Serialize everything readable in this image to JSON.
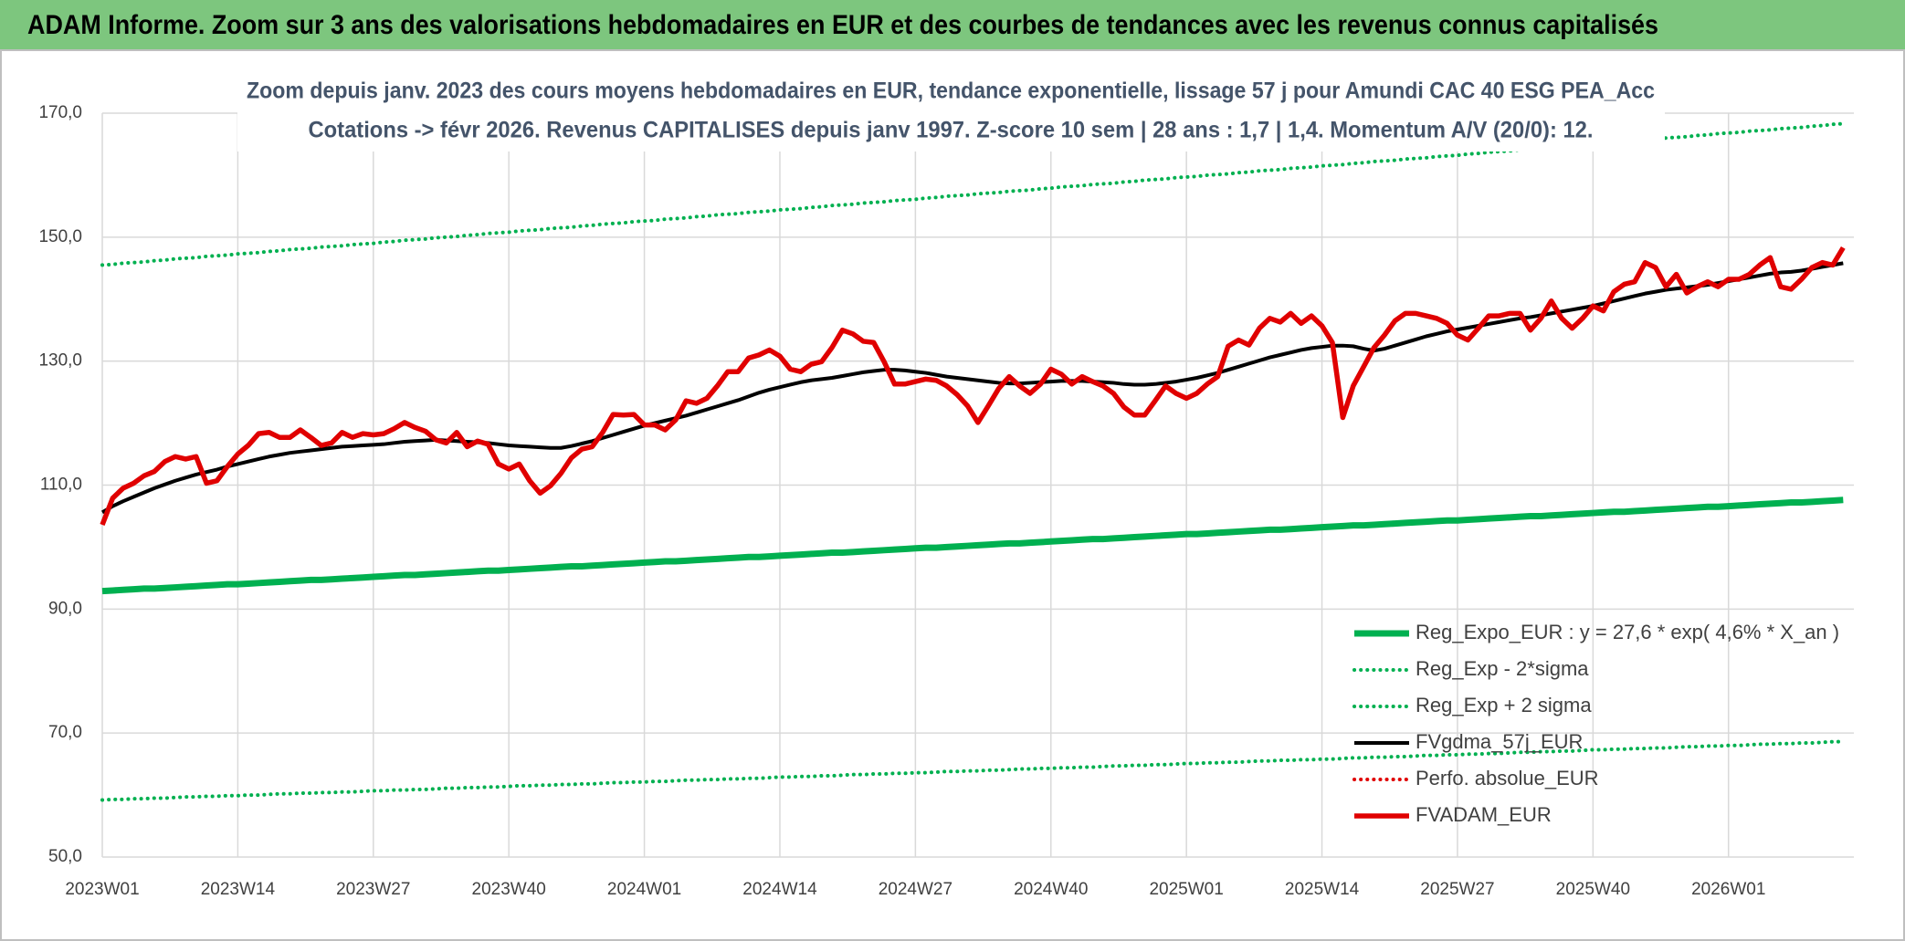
{
  "chart_data": {
    "type": "line",
    "title": "ADAM Informe. Zoom sur 3 ans des valorisations hebdomadaires en EUR et des courbes de tendances avec les revenus connus capitalisés",
    "subtitle": [
      "Zoom depuis janv. 2023 des cours moyens hebdomadaires en EUR, tendance exponentielle, lissage 57 j pour Amundi CAC 40 ESG PEA_Acc",
      "Cotations -> févr 2026. Revenus CAPITALISES depuis janv 1997. Z-score 10 sem | 28 ans : 1,7 | 1,4. Momentum A/V (20/0): 12."
    ],
    "categories": [
      "2023W01",
      null,
      null,
      null,
      null,
      null,
      null,
      null,
      null,
      null,
      null,
      null,
      null,
      "2023W14",
      null,
      null,
      null,
      null,
      null,
      null,
      null,
      null,
      null,
      null,
      null,
      null,
      "2023W27",
      null,
      null,
      null,
      null,
      null,
      null,
      null,
      null,
      null,
      null,
      null,
      null,
      "2023W40",
      null,
      null,
      null,
      null,
      null,
      null,
      null,
      null,
      null,
      null,
      null,
      null,
      "2024W01",
      null,
      null,
      null,
      null,
      null,
      null,
      null,
      null,
      null,
      null,
      null,
      null,
      "2024W14",
      null,
      null,
      null,
      null,
      null,
      null,
      null,
      null,
      null,
      null,
      null,
      null,
      "2024W27",
      null,
      null,
      null,
      null,
      null,
      null,
      null,
      null,
      null,
      null,
      null,
      null,
      "2024W40",
      null,
      null,
      null,
      null,
      null,
      null,
      null,
      null,
      null,
      null,
      null,
      null,
      "2025W01",
      null,
      null,
      null,
      null,
      null,
      null,
      null,
      null,
      null,
      null,
      null,
      null,
      "2025W14",
      null,
      null,
      null,
      null,
      null,
      null,
      null,
      null,
      null,
      null,
      null,
      null,
      "2025W27",
      null,
      null,
      null,
      null,
      null,
      null,
      null,
      null,
      null,
      null,
      null,
      null,
      "2025W40",
      null,
      null,
      null,
      null,
      null,
      null,
      null,
      null,
      null,
      null,
      null,
      null,
      "2026W01",
      null,
      null,
      null,
      null,
      null,
      null,
      null,
      null,
      null,
      null,
      null
    ],
    "ylim": [
      50,
      170
    ],
    "yticks": [
      {
        "value": 50,
        "label": "50,0"
      },
      {
        "value": 70,
        "label": "70,0"
      },
      {
        "value": 90,
        "label": "90,0"
      },
      {
        "value": 110,
        "label": "110,0"
      },
      {
        "value": 130,
        "label": "130,0"
      },
      {
        "value": 150,
        "label": "150,0"
      },
      {
        "value": 170,
        "label": "170,0"
      }
    ],
    "grid": true,
    "legend": "lower-right",
    "series": [
      {
        "name": "Reg_Expo_EUR : y = 27,6 * exp( 4,6% *  X_an )",
        "color": "#00b050",
        "style": "thick",
        "values": [
          92.9,
          93.0,
          93.1,
          93.2,
          93.3,
          93.3,
          93.4,
          93.5,
          93.6,
          93.7,
          93.8,
          93.9,
          94.0,
          94.0,
          94.1,
          94.2,
          94.3,
          94.4,
          94.5,
          94.6,
          94.7,
          94.7,
          94.8,
          94.9,
          95.0,
          95.1,
          95.2,
          95.3,
          95.4,
          95.5,
          95.5,
          95.6,
          95.7,
          95.8,
          95.9,
          96.0,
          96.1,
          96.2,
          96.2,
          96.3,
          96.4,
          96.5,
          96.6,
          96.7,
          96.8,
          96.9,
          96.9,
          97.0,
          97.1,
          97.2,
          97.3,
          97.4,
          97.5,
          97.6,
          97.7,
          97.7,
          97.8,
          97.9,
          98.0,
          98.1,
          98.2,
          98.3,
          98.4,
          98.4,
          98.5,
          98.6,
          98.7,
          98.8,
          98.9,
          99.0,
          99.1,
          99.1,
          99.2,
          99.3,
          99.4,
          99.5,
          99.6,
          99.7,
          99.8,
          99.9,
          99.9,
          100.0,
          100.1,
          100.2,
          100.3,
          100.4,
          100.5,
          100.6,
          100.6,
          100.7,
          100.8,
          100.9,
          101.0,
          101.1,
          101.2,
          101.3,
          101.3,
          101.4,
          101.5,
          101.6,
          101.7,
          101.8,
          101.9,
          102.0,
          102.1,
          102.1,
          102.2,
          102.3,
          102.4,
          102.5,
          102.6,
          102.7,
          102.8,
          102.8,
          102.9,
          103.0,
          103.1,
          103.2,
          103.3,
          103.4,
          103.5,
          103.5,
          103.6,
          103.7,
          103.8,
          103.9,
          104.0,
          104.1,
          104.2,
          104.3,
          104.3,
          104.4,
          104.5,
          104.6,
          104.7,
          104.8,
          104.9,
          105.0,
          105.0,
          105.1,
          105.2,
          105.3,
          105.4,
          105.5,
          105.6,
          105.7,
          105.7,
          105.8,
          105.9,
          106.0,
          106.1,
          106.2,
          106.3,
          106.4,
          106.5,
          106.5,
          106.6,
          106.7,
          106.8,
          106.9,
          107.0,
          107.1,
          107.2,
          107.2,
          107.3,
          107.4,
          107.5,
          107.6
        ]
      },
      {
        "name": "Reg_Exp - 2*sigma",
        "color": "#00b050",
        "style": "dotted",
        "values": [
          59.2,
          59.3,
          59.3,
          59.4,
          59.4,
          59.5,
          59.5,
          59.6,
          59.7,
          59.7,
          59.8,
          59.8,
          59.9,
          59.9,
          60.0,
          60.0,
          60.1,
          60.2,
          60.2,
          60.3,
          60.3,
          60.4,
          60.4,
          60.5,
          60.5,
          60.6,
          60.7,
          60.7,
          60.8,
          60.8,
          60.9,
          60.9,
          61.0,
          61.1,
          61.1,
          61.2,
          61.2,
          61.3,
          61.3,
          61.4,
          61.5,
          61.5,
          61.6,
          61.6,
          61.7,
          61.7,
          61.8,
          61.8,
          61.9,
          62.0,
          62.0,
          62.1,
          62.1,
          62.2,
          62.2,
          62.3,
          62.4,
          62.4,
          62.5,
          62.5,
          62.6,
          62.6,
          62.7,
          62.7,
          62.8,
          62.9,
          62.9,
          63.0,
          63.0,
          63.1,
          63.1,
          63.2,
          63.3,
          63.3,
          63.4,
          63.4,
          63.5,
          63.5,
          63.6,
          63.6,
          63.7,
          63.8,
          63.8,
          63.9,
          63.9,
          64.0,
          64.0,
          64.1,
          64.2,
          64.2,
          64.3,
          64.3,
          64.4,
          64.4,
          64.5,
          64.5,
          64.6,
          64.7,
          64.7,
          64.8,
          64.8,
          64.9,
          64.9,
          65.0,
          65.1,
          65.1,
          65.2,
          65.2,
          65.3,
          65.3,
          65.4,
          65.5,
          65.5,
          65.6,
          65.6,
          65.7,
          65.7,
          65.8,
          65.8,
          65.9,
          66.0,
          66.0,
          66.1,
          66.1,
          66.2,
          66.2,
          66.3,
          66.4,
          66.4,
          66.5,
          66.5,
          66.6,
          66.6,
          66.7,
          66.7,
          66.8,
          66.9,
          66.9,
          67.0,
          67.0,
          67.1,
          67.1,
          67.2,
          67.3,
          67.3,
          67.4,
          67.4,
          67.5,
          67.5,
          67.6,
          67.6,
          67.7,
          67.8,
          67.8,
          67.9,
          67.9,
          68.0,
          68.0,
          68.1,
          68.2,
          68.2,
          68.3,
          68.3,
          68.4,
          68.4,
          68.5,
          68.6,
          68.6
        ]
      },
      {
        "name": "Reg_Exp + 2 sigma",
        "color": "#00b050",
        "style": "dotted",
        "values": [
          145.5,
          145.6,
          145.8,
          145.9,
          146.0,
          146.2,
          146.3,
          146.5,
          146.6,
          146.7,
          146.9,
          147.0,
          147.1,
          147.3,
          147.4,
          147.5,
          147.7,
          147.8,
          148.0,
          148.1,
          148.2,
          148.4,
          148.5,
          148.6,
          148.8,
          148.9,
          149.0,
          149.2,
          149.3,
          149.5,
          149.6,
          149.7,
          149.9,
          150.0,
          150.1,
          150.3,
          150.4,
          150.6,
          150.7,
          150.8,
          151.0,
          151.1,
          151.2,
          151.4,
          151.5,
          151.6,
          151.8,
          151.9,
          152.1,
          152.2,
          152.3,
          152.5,
          152.6,
          152.7,
          152.9,
          153.0,
          153.1,
          153.3,
          153.4,
          153.6,
          153.7,
          153.8,
          154.0,
          154.1,
          154.2,
          154.4,
          154.5,
          154.6,
          154.8,
          154.9,
          155.1,
          155.2,
          155.3,
          155.5,
          155.6,
          155.7,
          155.9,
          156.0,
          156.1,
          156.3,
          156.4,
          156.6,
          156.7,
          156.8,
          157.0,
          157.1,
          157.2,
          157.4,
          157.5,
          157.6,
          157.8,
          157.9,
          158.1,
          158.2,
          158.3,
          158.5,
          158.6,
          158.7,
          158.9,
          159.0,
          159.2,
          159.3,
          159.4,
          159.6,
          159.7,
          159.8,
          160.0,
          160.1,
          160.2,
          160.4,
          160.5,
          160.7,
          160.8,
          160.9,
          161.1,
          161.2,
          161.3,
          161.5,
          161.6,
          161.7,
          161.9,
          162.0,
          162.2,
          162.3,
          162.4,
          162.6,
          162.7,
          162.8,
          163.0,
          163.1,
          163.2,
          163.4,
          163.5,
          163.7,
          163.8,
          163.9,
          164.1,
          164.2,
          164.3,
          164.5,
          164.6,
          164.7,
          164.9,
          165.0,
          165.2,
          165.3,
          165.4,
          165.6,
          165.7,
          165.8,
          166.0,
          166.1,
          166.2,
          166.4,
          166.5,
          166.7,
          166.8,
          166.9,
          167.1,
          167.2,
          167.3,
          167.5,
          167.6,
          167.7,
          167.9,
          168.0,
          168.2,
          168.3
        ]
      },
      {
        "name": "FVgdma_57j_EUR",
        "color": "#000000",
        "style": "solid",
        "values": [
          105.6,
          106.6,
          107.4,
          108.1,
          108.8,
          109.5,
          110.1,
          110.7,
          111.2,
          111.7,
          112.1,
          112.5,
          113.0,
          113.4,
          113.8,
          114.2,
          114.6,
          114.9,
          115.2,
          115.4,
          115.6,
          115.8,
          116.0,
          116.2,
          116.3,
          116.4,
          116.5,
          116.6,
          116.8,
          117.0,
          117.1,
          117.2,
          117.3,
          117.2,
          117.1,
          117.0,
          116.9,
          116.8,
          116.6,
          116.4,
          116.3,
          116.2,
          116.1,
          116.0,
          116.0,
          116.3,
          116.7,
          117.1,
          117.6,
          118.1,
          118.6,
          119.1,
          119.6,
          120.0,
          120.4,
          120.8,
          121.2,
          121.7,
          122.2,
          122.7,
          123.2,
          123.7,
          124.3,
          124.9,
          125.4,
          125.8,
          126.2,
          126.6,
          126.9,
          127.1,
          127.3,
          127.6,
          127.9,
          128.2,
          128.4,
          128.6,
          128.6,
          128.5,
          128.3,
          128.1,
          127.8,
          127.5,
          127.3,
          127.1,
          126.9,
          126.7,
          126.5,
          126.4,
          126.4,
          126.5,
          126.6,
          126.7,
          126.8,
          126.8,
          126.8,
          126.7,
          126.6,
          126.5,
          126.3,
          126.2,
          126.2,
          126.3,
          126.5,
          126.7,
          127.0,
          127.3,
          127.7,
          128.1,
          128.6,
          129.1,
          129.6,
          130.1,
          130.6,
          131.0,
          131.4,
          131.8,
          132.1,
          132.3,
          132.5,
          132.5,
          132.4,
          132.0,
          131.7,
          132.0,
          132.5,
          133.0,
          133.5,
          134.0,
          134.4,
          134.8,
          135.1,
          135.4,
          135.7,
          136.0,
          136.3,
          136.6,
          136.9,
          137.1,
          137.4,
          137.7,
          138.0,
          138.3,
          138.6,
          138.9,
          139.3,
          139.7,
          140.1,
          140.5,
          140.9,
          141.2,
          141.5,
          141.7,
          141.9,
          142.1,
          142.3,
          142.6,
          142.9,
          143.2,
          143.5,
          143.8,
          144.1,
          144.3,
          144.4,
          144.6,
          144.9,
          145.2,
          145.5,
          145.8
        ]
      },
      {
        "name": "Perfo. absolue_EUR",
        "color": "#e00000",
        "style": "dotted"
      },
      {
        "name": "FVADAM_EUR",
        "color": "#e00000",
        "style": "bold",
        "values": [
          103.6,
          107.9,
          109.5,
          110.3,
          111.5,
          112.2,
          113.8,
          114.6,
          114.2,
          114.6,
          110.3,
          110.7,
          113.0,
          115.0,
          116.4,
          118.3,
          118.5,
          117.7,
          117.7,
          118.9,
          117.7,
          116.4,
          116.8,
          118.5,
          117.7,
          118.3,
          118.1,
          118.3,
          119.1,
          120.1,
          119.3,
          118.7,
          117.3,
          116.8,
          118.5,
          116.2,
          117.1,
          116.6,
          113.4,
          112.6,
          113.4,
          110.7,
          108.7,
          109.9,
          111.9,
          114.4,
          115.8,
          116.2,
          118.5,
          121.4,
          121.3,
          121.4,
          119.7,
          119.7,
          118.9,
          120.5,
          123.6,
          123.2,
          124.0,
          126.0,
          128.3,
          128.3,
          130.5,
          131.0,
          131.8,
          130.8,
          128.7,
          128.3,
          129.5,
          129.9,
          132.2,
          135.0,
          134.4,
          133.2,
          133.0,
          129.9,
          126.3,
          126.3,
          126.7,
          127.1,
          126.9,
          126.0,
          124.6,
          122.8,
          120.1,
          122.8,
          125.6,
          127.5,
          126.0,
          124.8,
          126.3,
          128.7,
          127.9,
          126.3,
          127.5,
          126.7,
          126.0,
          124.8,
          122.6,
          121.3,
          121.3,
          123.6,
          126.0,
          124.8,
          124.0,
          124.8,
          126.3,
          127.5,
          132.4,
          133.4,
          132.6,
          135.3,
          136.9,
          136.3,
          137.7,
          136.1,
          137.3,
          135.7,
          133.0,
          120.9,
          126.0,
          129.1,
          132.2,
          134.2,
          136.5,
          137.7,
          137.7,
          137.3,
          136.9,
          136.1,
          134.2,
          133.4,
          135.3,
          137.3,
          137.3,
          137.7,
          137.7,
          135.0,
          136.9,
          139.7,
          136.9,
          135.3,
          136.9,
          138.9,
          138.1,
          141.2,
          142.4,
          142.8,
          145.9,
          145.1,
          142.0,
          144.0,
          141.0,
          142.0,
          142.8,
          142.0,
          143.2,
          143.2,
          144.0,
          145.5,
          146.7,
          142.0,
          141.6,
          143.2,
          145.1,
          145.9,
          145.5,
          148.3
        ]
      }
    ]
  }
}
